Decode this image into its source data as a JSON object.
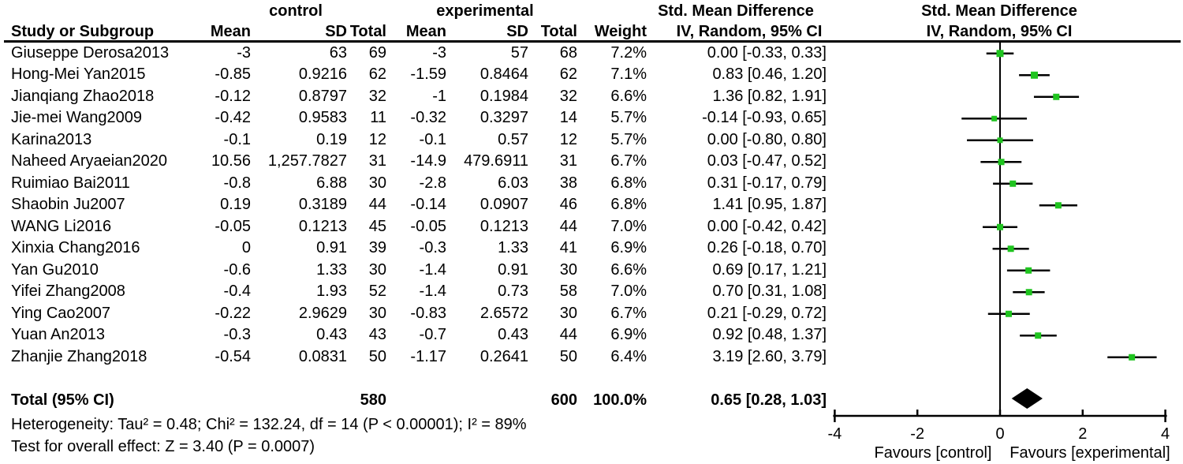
{
  "header": {
    "group1": "control",
    "group2": "experimental",
    "effect": "Std. Mean Difference",
    "method": "IV, Random, 95% CI",
    "col_study": "Study or Subgroup",
    "col_mean": "Mean",
    "col_sd": "SD",
    "col_total": "Total",
    "col_weight": "Weight"
  },
  "footer": {
    "heterogeneity": "Heterogeneity: Tau² = 0.48; Chi² = 132.24, df = 14 (P < 0.00001); I² = 89%",
    "overall": "Test for overall effect: Z = 3.40 (P = 0.0007)"
  },
  "colors": {
    "marker_green": "#1fc41f",
    "line_black": "#000000"
  },
  "chart_data": {
    "type": "forest",
    "effect_measure": "Std. Mean Difference",
    "model": "IV, Random, 95% CI",
    "xlim": [
      -4,
      4
    ],
    "ticks": [
      -4,
      -2,
      0,
      2,
      4
    ],
    "favours_left": "Favours [control]",
    "favours_right": "Favours [experimental]",
    "studies": [
      {
        "study": "Giuseppe Derosa2013",
        "mean_c": "-3",
        "sd_c": "63",
        "total_c": "69",
        "mean_e": "-3",
        "sd_e": "57",
        "total_e": "68",
        "weight": "7.2%",
        "weight_pct": 7.2,
        "ci": "0.00 [-0.33, 0.33]",
        "est": 0.0,
        "lo": -0.33,
        "hi": 0.33
      },
      {
        "study": "Hong-Mei Yan2015",
        "mean_c": "-0.85",
        "sd_c": "0.9216",
        "total_c": "62",
        "mean_e": "-1.59",
        "sd_e": "0.8464",
        "total_e": "62",
        "weight": "7.1%",
        "weight_pct": 7.1,
        "ci": "0.83 [0.46, 1.20]",
        "est": 0.83,
        "lo": 0.46,
        "hi": 1.2
      },
      {
        "study": "Jianqiang Zhao2018",
        "mean_c": "-0.12",
        "sd_c": "0.8797",
        "total_c": "32",
        "mean_e": "-1",
        "sd_e": "0.1984",
        "total_e": "32",
        "weight": "6.6%",
        "weight_pct": 6.6,
        "ci": "1.36 [0.82, 1.91]",
        "est": 1.36,
        "lo": 0.82,
        "hi": 1.91
      },
      {
        "study": "Jie-mei Wang2009",
        "mean_c": "-0.42",
        "sd_c": "0.9583",
        "total_c": "11",
        "mean_e": "-0.32",
        "sd_e": "0.3297",
        "total_e": "14",
        "weight": "5.7%",
        "weight_pct": 5.7,
        "ci": "-0.14 [-0.93, 0.65]",
        "est": -0.14,
        "lo": -0.93,
        "hi": 0.65
      },
      {
        "study": "Karina2013",
        "mean_c": "-0.1",
        "sd_c": "0.19",
        "total_c": "12",
        "mean_e": "-0.1",
        "sd_e": "0.57",
        "total_e": "12",
        "weight": "5.7%",
        "weight_pct": 5.7,
        "ci": "0.00 [-0.80, 0.80]",
        "est": 0.0,
        "lo": -0.8,
        "hi": 0.8
      },
      {
        "study": "Naheed Aryaeian2020",
        "mean_c": "10.56",
        "sd_c": "1,257.7827",
        "total_c": "31",
        "mean_e": "-14.9",
        "sd_e": "479.6911",
        "total_e": "31",
        "weight": "6.7%",
        "weight_pct": 6.7,
        "ci": "0.03 [-0.47, 0.52]",
        "est": 0.03,
        "lo": -0.47,
        "hi": 0.52
      },
      {
        "study": "Ruimiao Bai2011",
        "mean_c": "-0.8",
        "sd_c": "6.88",
        "total_c": "30",
        "mean_e": "-2.8",
        "sd_e": "6.03",
        "total_e": "38",
        "weight": "6.8%",
        "weight_pct": 6.8,
        "ci": "0.31 [-0.17, 0.79]",
        "est": 0.31,
        "lo": -0.17,
        "hi": 0.79
      },
      {
        "study": "Shaobin Ju2007",
        "mean_c": "0.19",
        "sd_c": "0.3189",
        "total_c": "44",
        "mean_e": "-0.14",
        "sd_e": "0.0907",
        "total_e": "46",
        "weight": "6.8%",
        "weight_pct": 6.8,
        "ci": "1.41 [0.95, 1.87]",
        "est": 1.41,
        "lo": 0.95,
        "hi": 1.87
      },
      {
        "study": "WANG Li2016",
        "mean_c": "-0.05",
        "sd_c": "0.1213",
        "total_c": "45",
        "mean_e": "-0.05",
        "sd_e": "0.1213",
        "total_e": "44",
        "weight": "7.0%",
        "weight_pct": 7.0,
        "ci": "0.00 [-0.42, 0.42]",
        "est": 0.0,
        "lo": -0.42,
        "hi": 0.42
      },
      {
        "study": "Xinxia Chang2016",
        "mean_c": "0",
        "sd_c": "0.91",
        "total_c": "39",
        "mean_e": "-0.3",
        "sd_e": "1.33",
        "total_e": "41",
        "weight": "6.9%",
        "weight_pct": 6.9,
        "ci": "0.26 [-0.18, 0.70]",
        "est": 0.26,
        "lo": -0.18,
        "hi": 0.7
      },
      {
        "study": "Yan Gu2010",
        "mean_c": "-0.6",
        "sd_c": "1.33",
        "total_c": "30",
        "mean_e": "-1.4",
        "sd_e": "0.91",
        "total_e": "30",
        "weight": "6.6%",
        "weight_pct": 6.6,
        "ci": "0.69 [0.17, 1.21]",
        "est": 0.69,
        "lo": 0.17,
        "hi": 1.21
      },
      {
        "study": "Yifei Zhang2008",
        "mean_c": "-0.4",
        "sd_c": "1.93",
        "total_c": "52",
        "mean_e": "-1.4",
        "sd_e": "0.73",
        "total_e": "58",
        "weight": "7.0%",
        "weight_pct": 7.0,
        "ci": "0.70 [0.31, 1.08]",
        "est": 0.7,
        "lo": 0.31,
        "hi": 1.08
      },
      {
        "study": "Ying Cao2007",
        "mean_c": "-0.22",
        "sd_c": "2.9629",
        "total_c": "30",
        "mean_e": "-0.83",
        "sd_e": "2.6572",
        "total_e": "30",
        "weight": "6.7%",
        "weight_pct": 6.7,
        "ci": "0.21 [-0.29, 0.72]",
        "est": 0.21,
        "lo": -0.29,
        "hi": 0.72
      },
      {
        "study": "Yuan An2013",
        "mean_c": "-0.3",
        "sd_c": "0.43",
        "total_c": "43",
        "mean_e": "-0.7",
        "sd_e": "0.43",
        "total_e": "44",
        "weight": "6.9%",
        "weight_pct": 6.9,
        "ci": "0.92 [0.48, 1.37]",
        "est": 0.92,
        "lo": 0.48,
        "hi": 1.37
      },
      {
        "study": "Zhanjie Zhang2018",
        "mean_c": "-0.54",
        "sd_c": "0.0831",
        "total_c": "50",
        "mean_e": "-1.17",
        "sd_e": "0.2641",
        "total_e": "50",
        "weight": "6.4%",
        "weight_pct": 6.4,
        "ci": "3.19 [2.60, 3.79]",
        "est": 3.19,
        "lo": 2.6,
        "hi": 3.79
      }
    ],
    "total": {
      "label": "Total (95% CI)",
      "total_c": "580",
      "total_e": "600",
      "weight": "100.0%",
      "ci": "0.65 [0.28, 1.03]",
      "est": 0.65,
      "lo": 0.28,
      "hi": 1.03
    }
  }
}
